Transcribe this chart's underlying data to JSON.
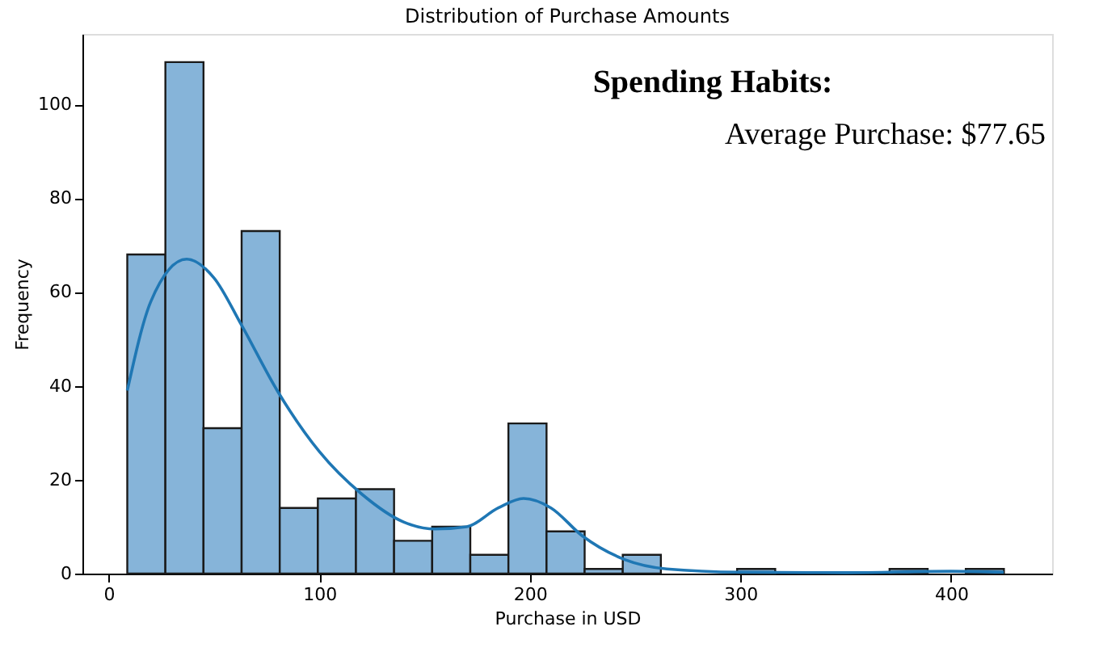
{
  "chart_data": {
    "type": "histogram",
    "title": "Distribution of Purchase Amounts",
    "xlabel": "Purchase in USD",
    "ylabel": "Frequency",
    "bins": [
      8.8,
      26.9,
      45,
      63.1,
      81.2,
      99.3,
      117.4,
      135.5,
      153.6,
      171.7,
      189.8,
      207.9,
      226,
      244.1,
      262.2,
      280.3,
      298.4,
      316.5,
      334.6,
      352.7,
      370.8,
      388.9,
      407,
      425.1
    ],
    "values": [
      68,
      109,
      31,
      73,
      14,
      16,
      18,
      7,
      10,
      4,
      32,
      9,
      1,
      4,
      0,
      0,
      1,
      0,
      0,
      0,
      1,
      0,
      1
    ],
    "color": "#86b4d9",
    "series": [
      {
        "type": "line",
        "color": "#1f77b4",
        "x": [
          8.8,
          20,
          37,
          50,
          63,
          80,
          100,
          120,
          140,
          155,
          170,
          185,
          197,
          210,
          225,
          245,
          265,
          300,
          350,
          400,
          425
        ],
        "values": [
          39,
          58,
          67,
          63,
          53,
          39,
          26,
          17,
          11,
          9.5,
          10,
          14,
          16,
          14,
          8,
          3,
          1,
          0.3,
          0.2,
          0.5,
          0.3
        ]
      }
    ],
    "xlim": [
      -12.5,
      448
    ],
    "xticks": [
      0,
      100,
      200,
      300,
      400
    ],
    "ylim": [
      0,
      115
    ],
    "yticks": [
      0,
      20,
      40,
      60,
      80,
      100
    ],
    "grid": false,
    "legend": false,
    "annotations": [
      "Spending Habits:",
      "Average Purchase: $77.65"
    ]
  }
}
